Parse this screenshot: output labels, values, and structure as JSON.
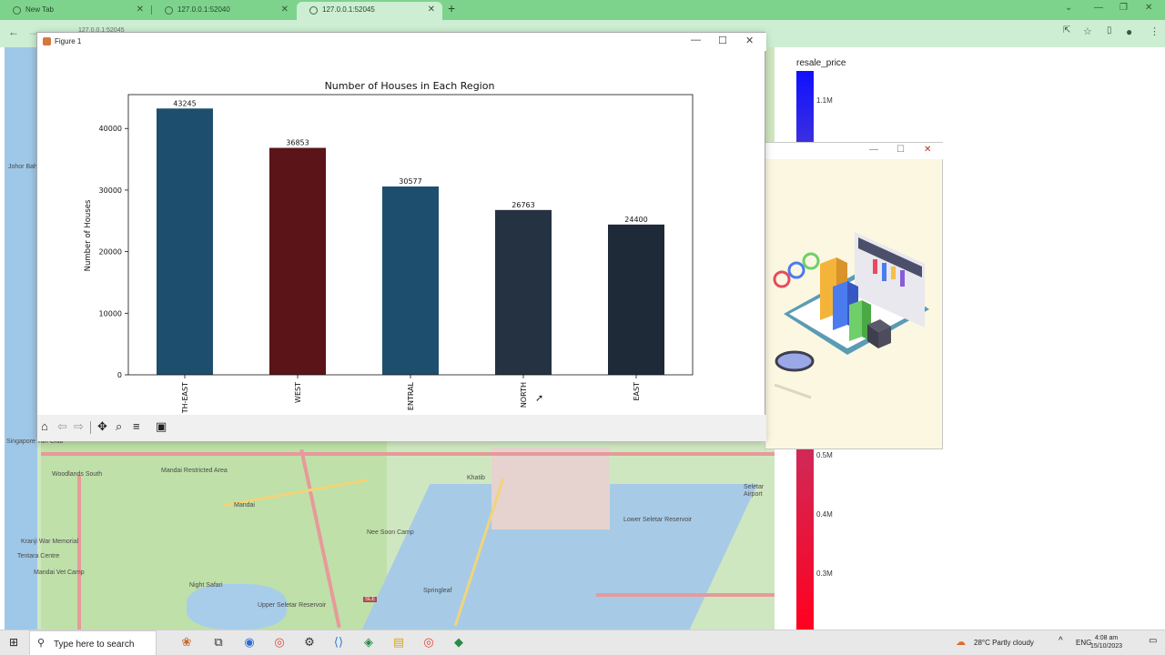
{
  "browser": {
    "tabs": [
      {
        "label": "New Tab"
      },
      {
        "label": "127.0.0.1:52040"
      },
      {
        "label": "127.0.0.1:52045"
      }
    ],
    "new_tab": "+",
    "omnibox": "127.0.0.1:52045"
  },
  "map": {
    "labels": [
      "Johor Bahru Sentral",
      "Singapore Turf Club",
      "Woodlands South",
      "Mandai Restricted Area",
      "Mandai",
      "Nee Soon Camp",
      "Khatib",
      "Springleaf",
      "Night Safari",
      "Upper Seletar Reservoir",
      "Lower Seletar Reservoir",
      "Seletar Airport",
      "Kranji War Memorial",
      "Tentara Centre",
      "Mandai Vet Camp"
    ],
    "sign": "SLE"
  },
  "colorbar": {
    "title": "resale_price",
    "ticks": [
      "1.1M",
      "0.5M",
      "0.4M",
      "0.3M"
    ],
    "top_color": "#1010ff",
    "bottom_color": "#ff0020"
  },
  "figure": {
    "window_title": "Figure 1",
    "controls": {
      "minimize": "—",
      "maximize": "☐",
      "close": "✕"
    },
    "toolbar": [
      "home-icon",
      "back-icon",
      "forward-icon",
      "pan-icon",
      "zoom-icon",
      "configure-icon",
      "save-icon"
    ]
  },
  "chart_data": {
    "type": "bar",
    "title": "Number of Houses in Each Region",
    "xlabel": "",
    "ylabel": "Number of Houses",
    "categories": [
      "NORTH-EAST",
      "WEST",
      "CENTRAL",
      "NORTH",
      "EAST"
    ],
    "tick_labels": [
      "TH-EAST",
      "WEST",
      "ENTRAL",
      "NORTH",
      "EAST"
    ],
    "values": [
      43245,
      36853,
      30577,
      26763,
      24400
    ],
    "value_labels": [
      "43245",
      "36853",
      "30577",
      "26763",
      "24400"
    ],
    "colors": [
      "#1e4e6e",
      "#5b1417",
      "#1e4e6e",
      "#243241",
      "#1f2a38"
    ],
    "ylim": [
      0,
      45500
    ],
    "yticks": [
      0,
      10000,
      20000,
      30000,
      40000
    ],
    "grid": false,
    "legend": "none"
  },
  "taskbar": {
    "search_placeholder": "Type here to search",
    "weather": "28°C  Partly cloudy",
    "language": "ENG",
    "time": "4:08 am",
    "date": "15/10/2023"
  }
}
